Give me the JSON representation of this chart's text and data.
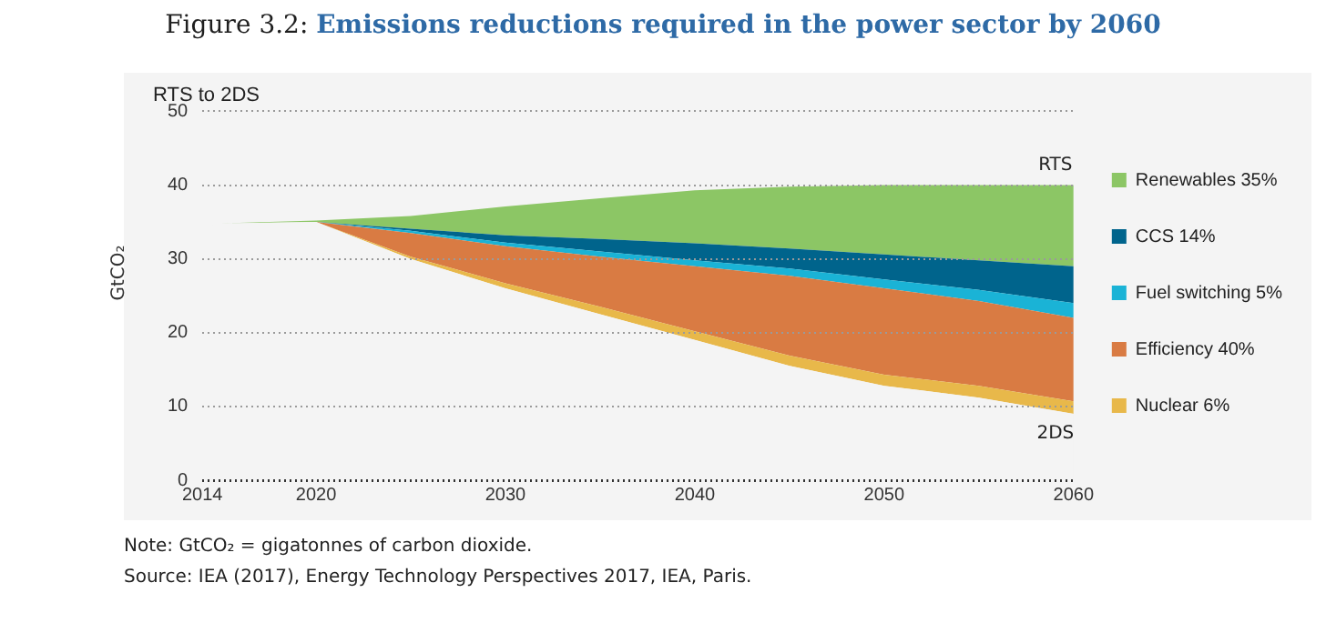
{
  "chart_data": {
    "type": "area",
    "title": "Figure 3.2: Emissions reductions required in the power sector by 2060",
    "subtitle": "RTS to 2DS",
    "ylabel": "GtCO₂",
    "x": [
      2014,
      2015,
      2020,
      2025,
      2030,
      2035,
      2040,
      2045,
      2050,
      2055,
      2060
    ],
    "series": [
      {
        "name": "2DS",
        "color": "#f4f4f4",
        "values": [
          34.3,
          34.8,
          35,
          30,
          26,
          22.5,
          19,
          15.5,
          12.8,
          11.2,
          9
        ]
      },
      {
        "name": "Nuclear 6%",
        "color": "#e8b84a",
        "values": [
          0,
          0,
          0,
          0.3,
          0.7,
          1,
          1.2,
          1.4,
          1.5,
          1.6,
          1.7
        ]
      },
      {
        "name": "Efficiency 40%",
        "color": "#d97b43",
        "values": [
          0,
          0,
          0,
          3.2,
          5,
          6.8,
          8.8,
          10.8,
          11.7,
          11.5,
          11.3
        ]
      },
      {
        "name": "Fuel switching 5%",
        "color": "#1ab3d6",
        "values": [
          0,
          0,
          0,
          0.3,
          0.5,
          0.7,
          0.8,
          1,
          1.2,
          1.5,
          2
        ]
      },
      {
        "name": "CCS 14%",
        "color": "#00648c",
        "values": [
          0,
          0,
          0,
          0.3,
          1,
          1.7,
          2.3,
          2.7,
          3.4,
          4,
          5
        ]
      },
      {
        "name": "Renewables 35%",
        "color": "#8cc665",
        "values": [
          0,
          0,
          0.2,
          1.7,
          3.9,
          5.5,
          7.2,
          8.4,
          9.4,
          10.2,
          11
        ]
      }
    ],
    "stacked": true,
    "xlim": [
      2014,
      2060
    ],
    "xticks": [
      2014,
      2020,
      2030,
      2040,
      2050,
      2060
    ],
    "ylim": [
      0,
      50
    ],
    "yticks": [
      0,
      10,
      20,
      30,
      40,
      50
    ],
    "grid": "y",
    "legend": "right",
    "annotations": [
      "RTS",
      "Note: GtCO₂ = gigatonnes of carbon dioxide.",
      "Source: IEA (2017), Energy Technology Perspectives 2017, IEA, Paris."
    ]
  }
}
